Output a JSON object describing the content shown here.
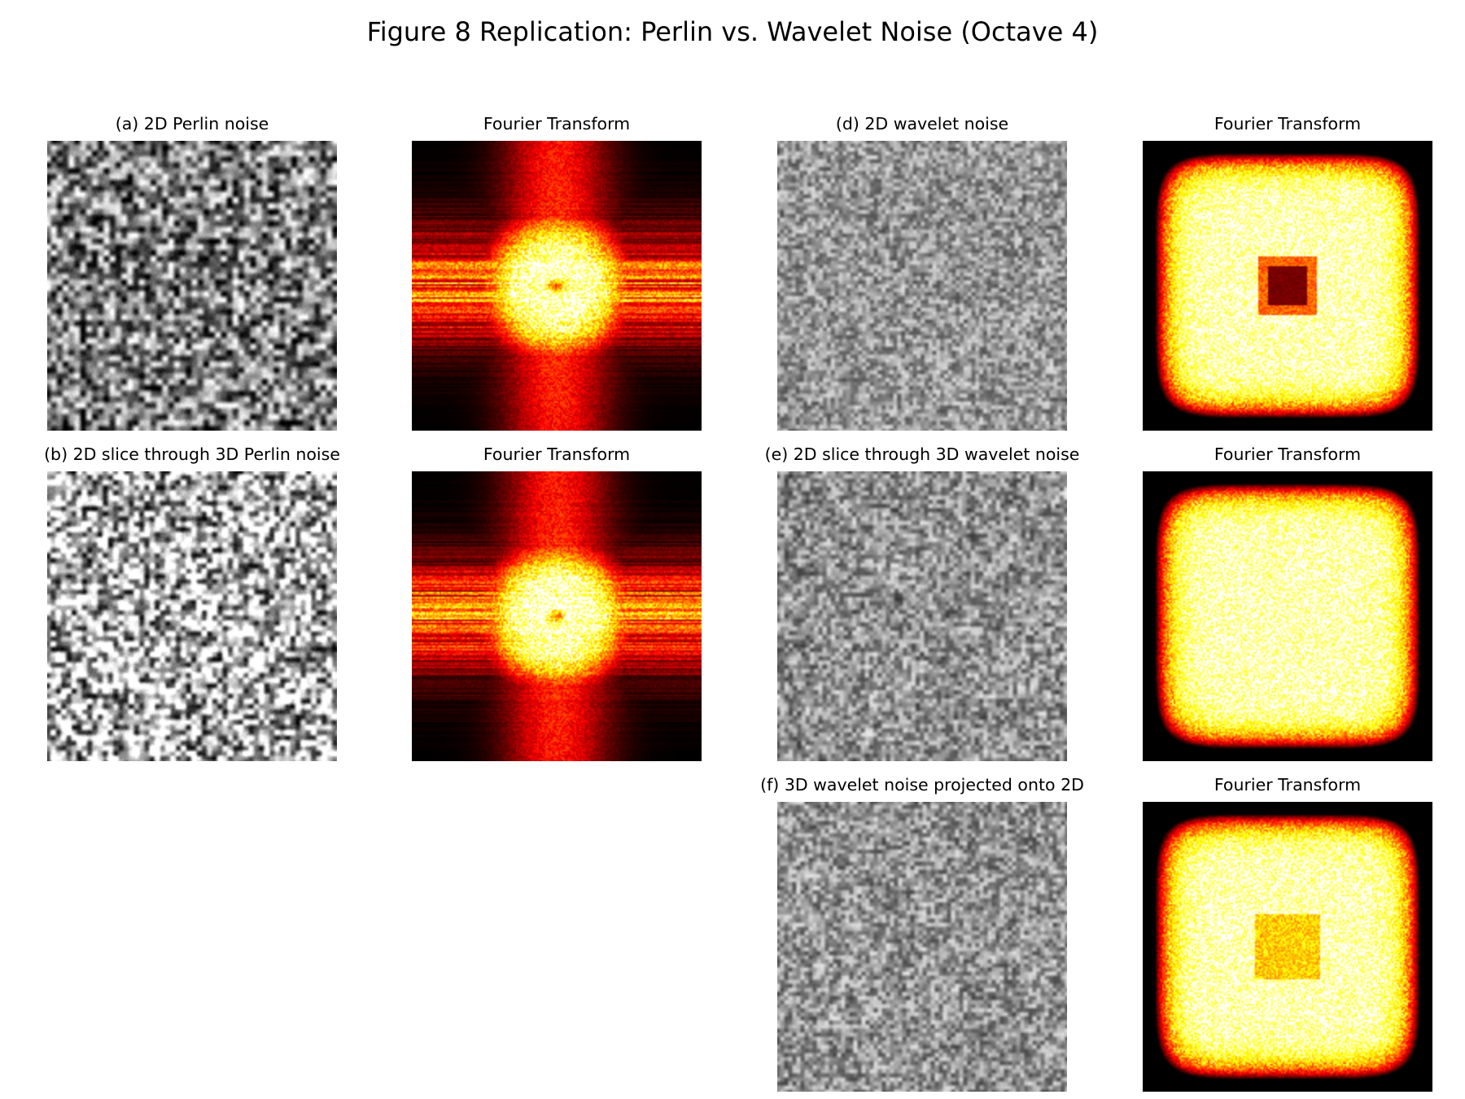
{
  "figure": {
    "title": "Figure 8 Replication: Perlin vs. Wavelet Noise (Octave 4)"
  },
  "panels": [
    {
      "id": "a",
      "title": "(a) 2D Perlin noise",
      "kind": "noise",
      "variant": "perlin2d"
    },
    {
      "id": "a_ft",
      "title": "Fourier Transform",
      "kind": "spectrum",
      "variant": "perlin2d"
    },
    {
      "id": "d",
      "title": "(d) 2D wavelet noise",
      "kind": "noise",
      "variant": "wavelet2d"
    },
    {
      "id": "d_ft",
      "title": "Fourier Transform",
      "kind": "spectrum",
      "variant": "wavelet2d"
    },
    {
      "id": "b",
      "title": "(b) 2D slice through 3D Perlin noise",
      "kind": "noise",
      "variant": "perlin3d"
    },
    {
      "id": "b_ft",
      "title": "Fourier Transform",
      "kind": "spectrum",
      "variant": "perlin3d"
    },
    {
      "id": "e",
      "title": "(e) 2D slice through 3D wavelet noise",
      "kind": "noise",
      "variant": "wavelet3dslice"
    },
    {
      "id": "e_ft",
      "title": "Fourier Transform",
      "kind": "spectrum",
      "variant": "wavelet3dslice"
    },
    {
      "id": "f",
      "title": "(f) 3D wavelet noise projected onto 2D",
      "kind": "noise",
      "variant": "wavelet3dproj"
    },
    {
      "id": "f_ft",
      "title": "Fourier Transform",
      "kind": "spectrum",
      "variant": "wavelet3dproj"
    }
  ],
  "colors": {
    "background": "#ffffff",
    "colormap": "hot"
  }
}
